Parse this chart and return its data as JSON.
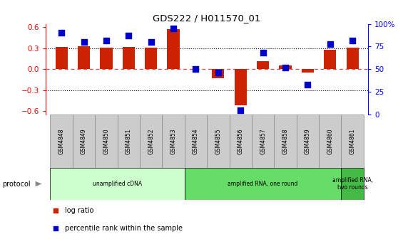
{
  "title": "GDS222 / H011570_01",
  "samples": [
    "GSM4848",
    "GSM4849",
    "GSM4850",
    "GSM4851",
    "GSM4852",
    "GSM4853",
    "GSM4854",
    "GSM4855",
    "GSM4856",
    "GSM4857",
    "GSM4858",
    "GSM4859",
    "GSM4860",
    "GSM4861"
  ],
  "log_ratio": [
    0.32,
    0.33,
    0.31,
    0.32,
    0.31,
    0.57,
    0.0,
    -0.13,
    -0.52,
    0.12,
    0.05,
    -0.05,
    0.28,
    0.31
  ],
  "percentile": [
    90,
    80,
    82,
    87,
    80,
    95,
    50,
    46,
    5,
    68,
    52,
    33,
    78,
    82
  ],
  "bar_color": "#cc2200",
  "dot_color": "#0000cc",
  "ylim_left": [
    -0.65,
    0.65
  ],
  "ylim_right": [
    0,
    100
  ],
  "yticks_left": [
    -0.6,
    -0.3,
    0.0,
    0.3,
    0.6
  ],
  "yticks_right": [
    0,
    25,
    50,
    75,
    100
  ],
  "ytick_labels_right": [
    "0",
    "25",
    "50",
    "75",
    "100%"
  ],
  "hlines_dotted": [
    -0.3,
    0.3
  ],
  "hline_zero_color": "#ff4444",
  "protocol_groups": [
    {
      "label": "unamplified cDNA",
      "start": 0,
      "end": 5,
      "color": "#ccffcc"
    },
    {
      "label": "amplified RNA, one round",
      "start": 6,
      "end": 12,
      "color": "#66dd66"
    },
    {
      "label": "amplified RNA,\ntwo rounds",
      "start": 13,
      "end": 13,
      "color": "#44bb44"
    }
  ],
  "protocol_label": "protocol",
  "legend_items": [
    {
      "color": "#cc2200",
      "label": "log ratio"
    },
    {
      "color": "#0000cc",
      "label": "percentile rank within the sample"
    }
  ],
  "background_color": "#ffffff",
  "bar_width": 0.55,
  "dot_size": 30,
  "cell_color": "#cccccc",
  "cell_edge_color": "#888888"
}
